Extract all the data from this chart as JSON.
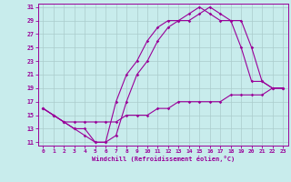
{
  "xlabel": "Windchill (Refroidissement éolien,°C)",
  "bg_color": "#c8ecec",
  "line_color": "#990099",
  "grid_color": "#aacccc",
  "xmin": 0,
  "xmax": 23,
  "ymin": 11,
  "ymax": 31,
  "xticks": [
    0,
    1,
    2,
    3,
    4,
    5,
    6,
    7,
    8,
    9,
    10,
    11,
    12,
    13,
    14,
    15,
    16,
    17,
    18,
    19,
    20,
    21,
    22,
    23
  ],
  "yticks": [
    11,
    13,
    15,
    17,
    19,
    21,
    23,
    25,
    27,
    29,
    31
  ],
  "line1_x": [
    0,
    1,
    2,
    3,
    4,
    5,
    6,
    7,
    8,
    9,
    10,
    11,
    12,
    13,
    14,
    15,
    16,
    17,
    18,
    19,
    20,
    21,
    22,
    23
  ],
  "line1_y": [
    16,
    15,
    14,
    13,
    12,
    11,
    11,
    17,
    21,
    23,
    26,
    28,
    29,
    29,
    30,
    31,
    30,
    29,
    29,
    25,
    20,
    20,
    19,
    19
  ],
  "line2_x": [
    0,
    1,
    2,
    3,
    4,
    5,
    6,
    7,
    8,
    9,
    10,
    11,
    12,
    13,
    14,
    15,
    16,
    17,
    18,
    19,
    20,
    21,
    22,
    23
  ],
  "line2_y": [
    16,
    15,
    14,
    13,
    13,
    11,
    11,
    12,
    17,
    21,
    23,
    26,
    28,
    29,
    29,
    30,
    31,
    30,
    29,
    29,
    25,
    20,
    19,
    19
  ],
  "line3_x": [
    0,
    1,
    2,
    3,
    4,
    5,
    6,
    7,
    8,
    9,
    10,
    11,
    12,
    13,
    14,
    15,
    16,
    17,
    18,
    19,
    20,
    21,
    22,
    23
  ],
  "line3_y": [
    16,
    15,
    14,
    14,
    14,
    14,
    14,
    14,
    15,
    15,
    15,
    16,
    16,
    17,
    17,
    17,
    17,
    17,
    18,
    18,
    18,
    18,
    19,
    19
  ]
}
